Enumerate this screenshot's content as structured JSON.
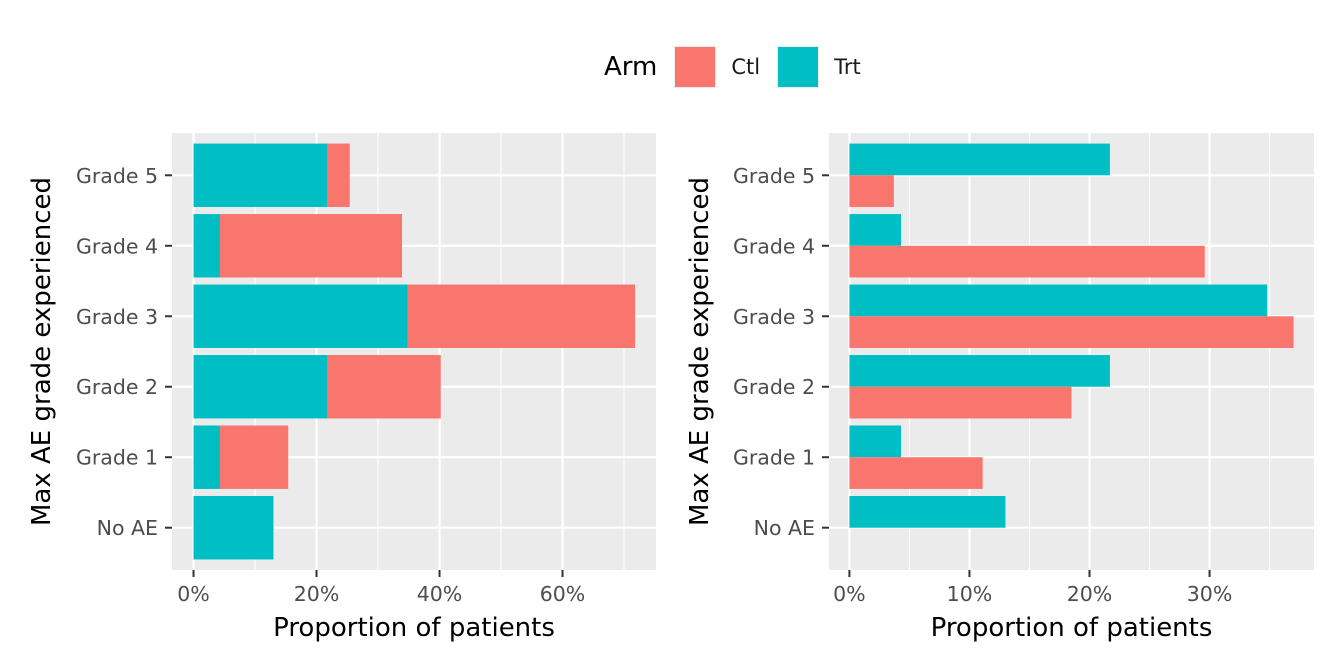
{
  "legend": {
    "title": "Arm",
    "items": [
      {
        "label": "Ctl",
        "color": "#F8766D"
      },
      {
        "label": "Trt",
        "color": "#00BFC4"
      }
    ]
  },
  "style": {
    "panel_background": "#EBEBEB",
    "grid_major": "#FFFFFF",
    "tick_text_color": "#4D4D4D",
    "axis_title_color": "#000000"
  },
  "chart_data": [
    {
      "type": "bar",
      "orientation": "horizontal",
      "position": "stacked",
      "categories": [
        "No AE",
        "Grade 1",
        "Grade 2",
        "Grade 3",
        "Grade 4",
        "Grade 5"
      ],
      "series": [
        {
          "name": "Ctl",
          "values": [
            0,
            11.1,
            18.5,
            37.0,
            29.6,
            3.7
          ]
        },
        {
          "name": "Trt",
          "values": [
            13.0,
            4.3,
            21.7,
            34.8,
            4.3,
            21.7
          ]
        }
      ],
      "xlabel": "Proportion of patients",
      "ylabel": "Max AE grade experienced",
      "xlim": [
        -3.5,
        75.2
      ],
      "xticks": [
        0,
        20,
        40,
        60
      ],
      "xtick_labels": [
        "0%",
        "20%",
        "40%",
        "60%"
      ],
      "grid": true
    },
    {
      "type": "bar",
      "orientation": "horizontal",
      "position": "dodge",
      "categories": [
        "No AE",
        "Grade 1",
        "Grade 2",
        "Grade 3",
        "Grade 4",
        "Grade 5"
      ],
      "series": [
        {
          "name": "Ctl",
          "values": [
            0,
            11.1,
            18.5,
            37.0,
            29.6,
            3.7
          ]
        },
        {
          "name": "Trt",
          "values": [
            13.0,
            4.3,
            21.7,
            34.8,
            4.3,
            21.7
          ]
        }
      ],
      "xlabel": "Proportion of patients",
      "ylabel": "Max AE grade experienced",
      "xlim": [
        -1.7,
        38.7
      ],
      "xticks": [
        0,
        10,
        20,
        30
      ],
      "xtick_labels": [
        "0%",
        "10%",
        "20%",
        "30%"
      ],
      "grid": true
    }
  ]
}
